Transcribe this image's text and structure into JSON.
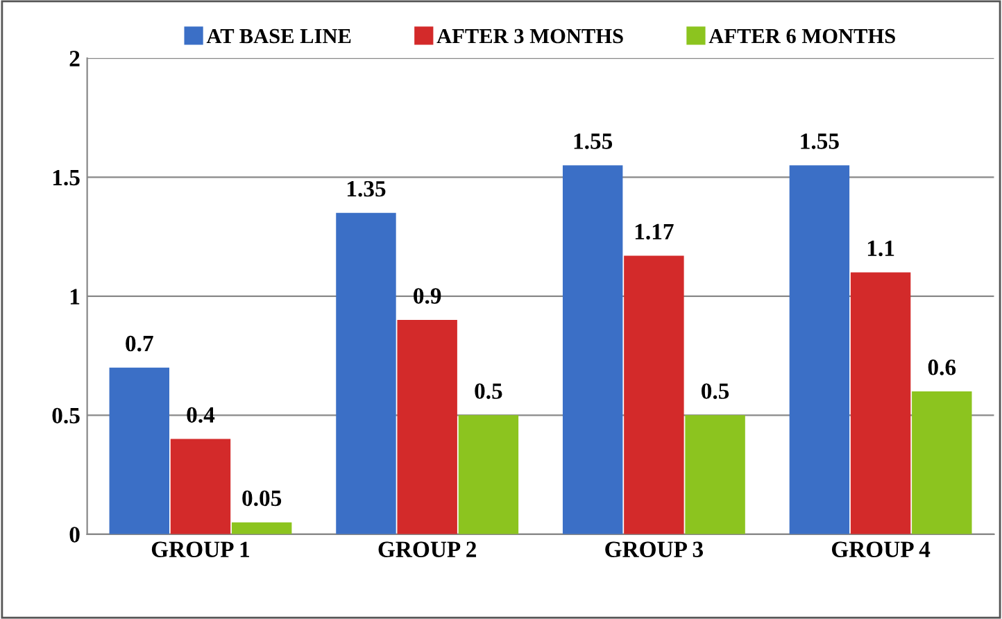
{
  "chart_data": {
    "type": "bar",
    "categories": [
      "GROUP 1",
      "GROUP 2",
      "GROUP 3",
      "GROUP 4"
    ],
    "series": [
      {
        "name": "AT BASE LINE",
        "color": "#3b6fc6",
        "values": [
          0.7,
          1.35,
          1.55,
          1.55
        ]
      },
      {
        "name": "AFTER 3 MONTHS",
        "color": "#d32a2a",
        "values": [
          0.4,
          0.9,
          1.17,
          1.1
        ]
      },
      {
        "name": "AFTER 6 MONTHS",
        "color": "#8cc41f",
        "values": [
          0.05,
          0.5,
          0.5,
          0.6
        ]
      }
    ],
    "ylim": [
      0,
      2
    ],
    "yticks": [
      0,
      0.5,
      1,
      1.5,
      2
    ],
    "grid": "y",
    "legend": "top",
    "data_labels": true
  }
}
